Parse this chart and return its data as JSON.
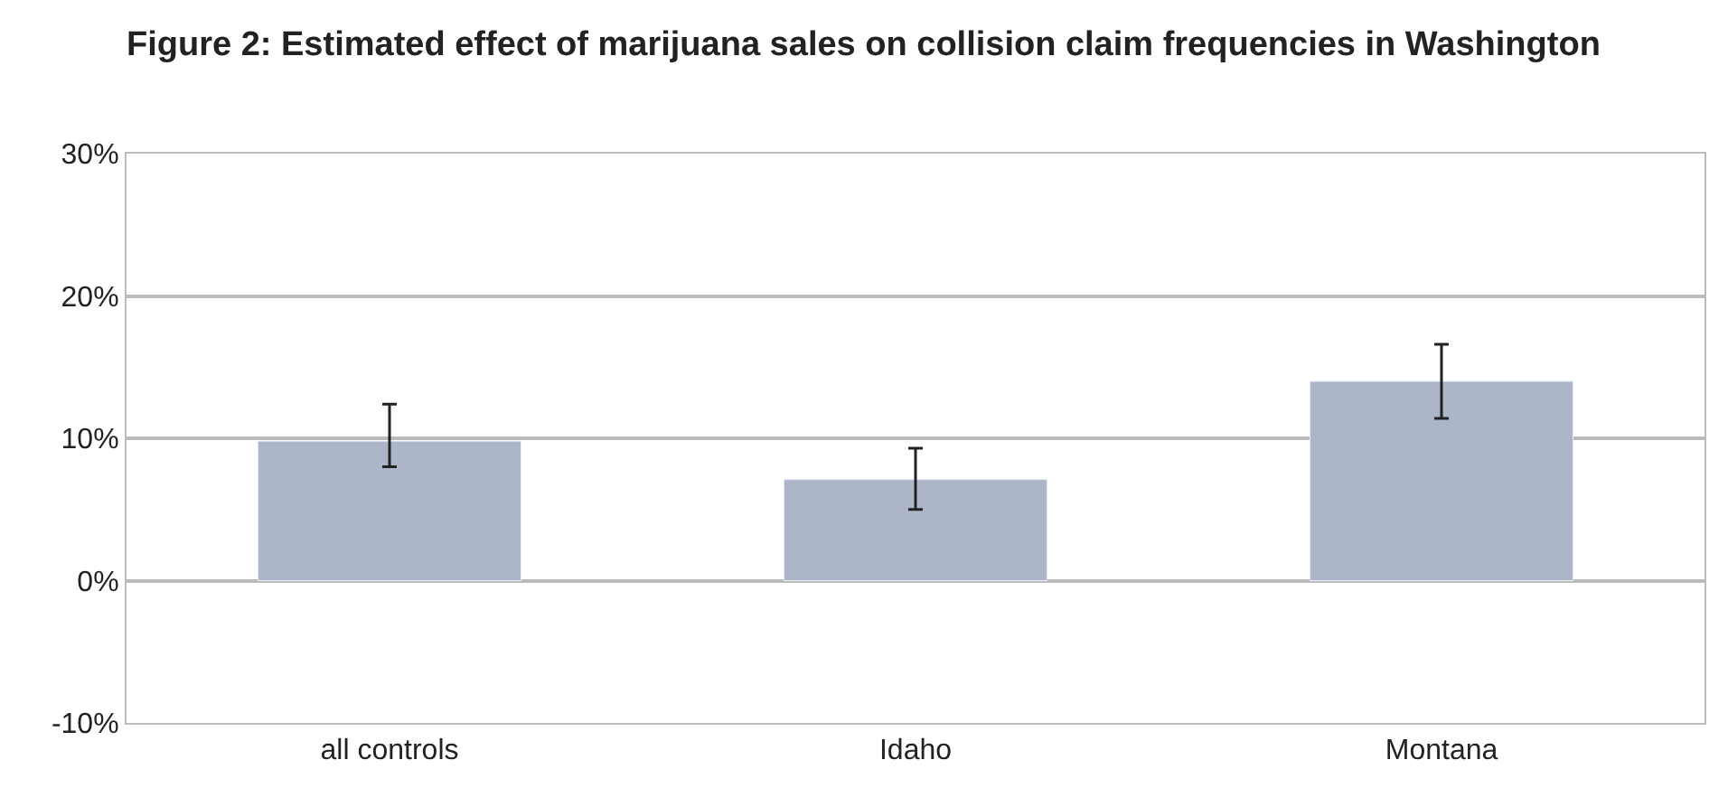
{
  "chart_data": {
    "type": "bar",
    "title": "Figure 2: Estimated effect of marijuana sales on collision claim frequencies in Washington",
    "categories": [
      "all controls",
      "Idaho",
      "Montana"
    ],
    "values": [
      9.8,
      7.1,
      14.0
    ],
    "errors": [
      [
        8.0,
        12.4
      ],
      [
        5.0,
        9.3
      ],
      [
        11.4,
        16.6
      ]
    ],
    "color": "#adb5c9",
    "ylim": [
      -10,
      30
    ],
    "yticks": [
      {
        "value": -10,
        "label": "-10%"
      },
      {
        "value": 0,
        "label": "0%"
      },
      {
        "value": 10,
        "label": "10%"
      },
      {
        "value": 20,
        "label": "20%"
      },
      {
        "value": 30,
        "label": "30%"
      }
    ],
    "grid": "y",
    "legend": false
  }
}
